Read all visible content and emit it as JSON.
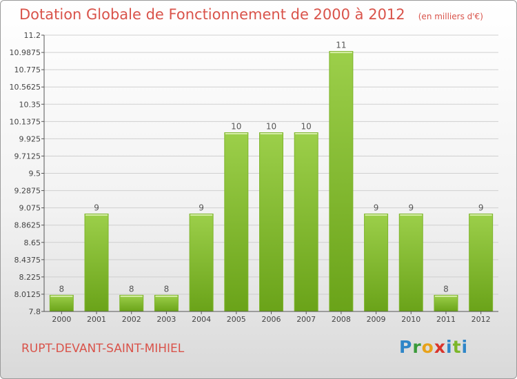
{
  "title": "Dotation Globale de Fonctionnement de 2000 à 2012",
  "unit": "(en milliers d'€)",
  "commune": "RUPT-DEVANT-SAINT-MIHIEL",
  "logo_letters": [
    "P",
    "r",
    "o",
    "x",
    "i",
    "t",
    "i"
  ],
  "colors": {
    "bar_light": "#9ccf4a",
    "bar_dark": "#6aa319",
    "title": "#d9534a",
    "grid": "#cfcfcf"
  },
  "chart_data": {
    "type": "bar",
    "title": "Dotation Globale de Fonctionnement de 2000 à 2012",
    "ylabel": "(en milliers d'€)",
    "categories": [
      "2000",
      "2001",
      "2002",
      "2003",
      "2004",
      "2005",
      "2006",
      "2007",
      "2008",
      "2009",
      "2010",
      "2011",
      "2012"
    ],
    "values": [
      8,
      9,
      8,
      8,
      9,
      10,
      10,
      10,
      11,
      9,
      9,
      8,
      9
    ],
    "ylim": [
      7.8,
      11.2
    ],
    "yticks": [
      "7.8",
      "8.0125",
      "8.225",
      "8.4375",
      "8.65",
      "8.8625",
      "9.075",
      "9.2875",
      "9.5",
      "9.7125",
      "9.925",
      "10.1375",
      "10.35",
      "10.5625",
      "10.775",
      "10.9875",
      "11.2"
    ],
    "grid": true
  }
}
